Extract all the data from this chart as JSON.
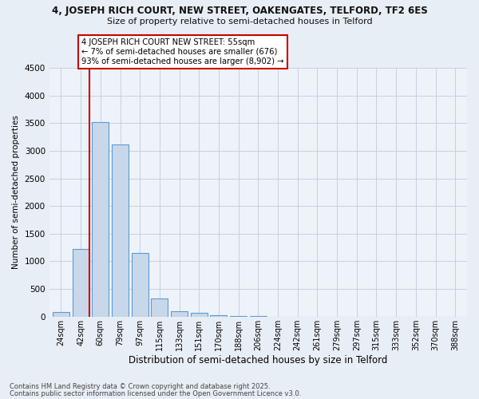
{
  "title_line1": "4, JOSEPH RICH COURT, NEW STREET, OAKENGATES, TELFORD, TF2 6ES",
  "title_line2": "Size of property relative to semi-detached houses in Telford",
  "xlabel": "Distribution of semi-detached houses by size in Telford",
  "ylabel": "Number of semi-detached properties",
  "categories": [
    "24sqm",
    "42sqm",
    "60sqm",
    "79sqm",
    "97sqm",
    "115sqm",
    "133sqm",
    "151sqm",
    "170sqm",
    "188sqm",
    "206sqm",
    "224sqm",
    "242sqm",
    "261sqm",
    "279sqm",
    "297sqm",
    "315sqm",
    "333sqm",
    "352sqm",
    "370sqm",
    "388sqm"
  ],
  "values": [
    80,
    1220,
    3520,
    3110,
    1145,
    330,
    100,
    65,
    30,
    15,
    5,
    3,
    2,
    1,
    0,
    0,
    0,
    0,
    0,
    0,
    0
  ],
  "bar_color": "#c8d8ea",
  "bar_edge_color": "#5b9bd5",
  "vline_index": 1,
  "annotation_text": "4 JOSEPH RICH COURT NEW STREET: 55sqm\n← 7% of semi-detached houses are smaller (676)\n93% of semi-detached houses are larger (8,902) →",
  "annotation_box_color": "#ffffff",
  "annotation_box_edge": "#cc0000",
  "vline_color": "#cc0000",
  "ylim": [
    0,
    4500
  ],
  "yticks": [
    0,
    500,
    1000,
    1500,
    2000,
    2500,
    3000,
    3500,
    4000,
    4500
  ],
  "footer_line1": "Contains HM Land Registry data © Crown copyright and database right 2025.",
  "footer_line2": "Contains public sector information licensed under the Open Government Licence v3.0.",
  "bg_color": "#e8eef5",
  "plot_bg_color": "#eef3f9",
  "grid_color": "#c5d0de"
}
